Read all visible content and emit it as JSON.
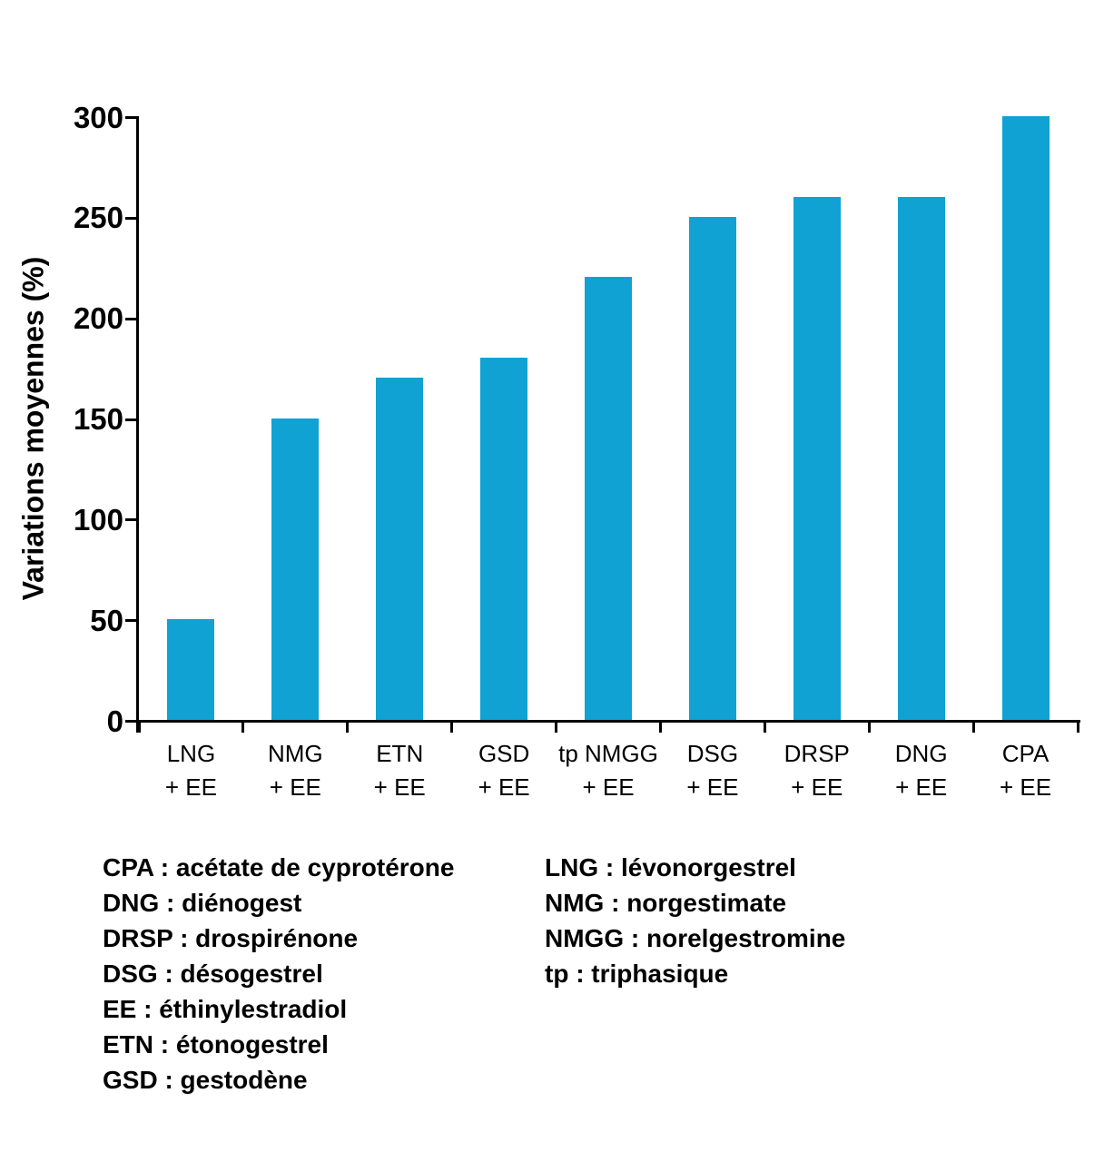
{
  "chart_data": {
    "type": "bar",
    "title": "",
    "ylabel": "Variations moyennes (%)",
    "xlabel": "",
    "ylim": [
      0,
      300
    ],
    "yticks": [
      0,
      50,
      100,
      150,
      200,
      250,
      300
    ],
    "grid": false,
    "legend_position": "none",
    "bar_color": "#0fa2d2",
    "categories": [
      [
        "LNG",
        "+ EE"
      ],
      [
        "NMG",
        "+ EE"
      ],
      [
        "ETN",
        "+ EE"
      ],
      [
        "GSD",
        "+ EE"
      ],
      [
        "tp NMGG",
        "+ EE"
      ],
      [
        "DSG",
        "+ EE"
      ],
      [
        "DRSP",
        "+ EE"
      ],
      [
        "DNG",
        "+ EE"
      ],
      [
        "CPA",
        "+ EE"
      ]
    ],
    "values": [
      50,
      150,
      170,
      180,
      220,
      250,
      260,
      260,
      300
    ],
    "abbreviation_key": {
      "left_column": [
        "CPA : acétate de cyprotérone",
        "DNG : diénogest",
        "DRSP : drospirénone",
        "DSG : désogestrel",
        "EE : éthinylestradiol",
        "ETN : étonogestrel",
        "GSD : gestodène"
      ],
      "right_column": [
        "LNG : lévonorgestrel",
        "NMG : norgestimate",
        "NMGG : norelgestromine",
        "tp : triphasique"
      ]
    }
  }
}
